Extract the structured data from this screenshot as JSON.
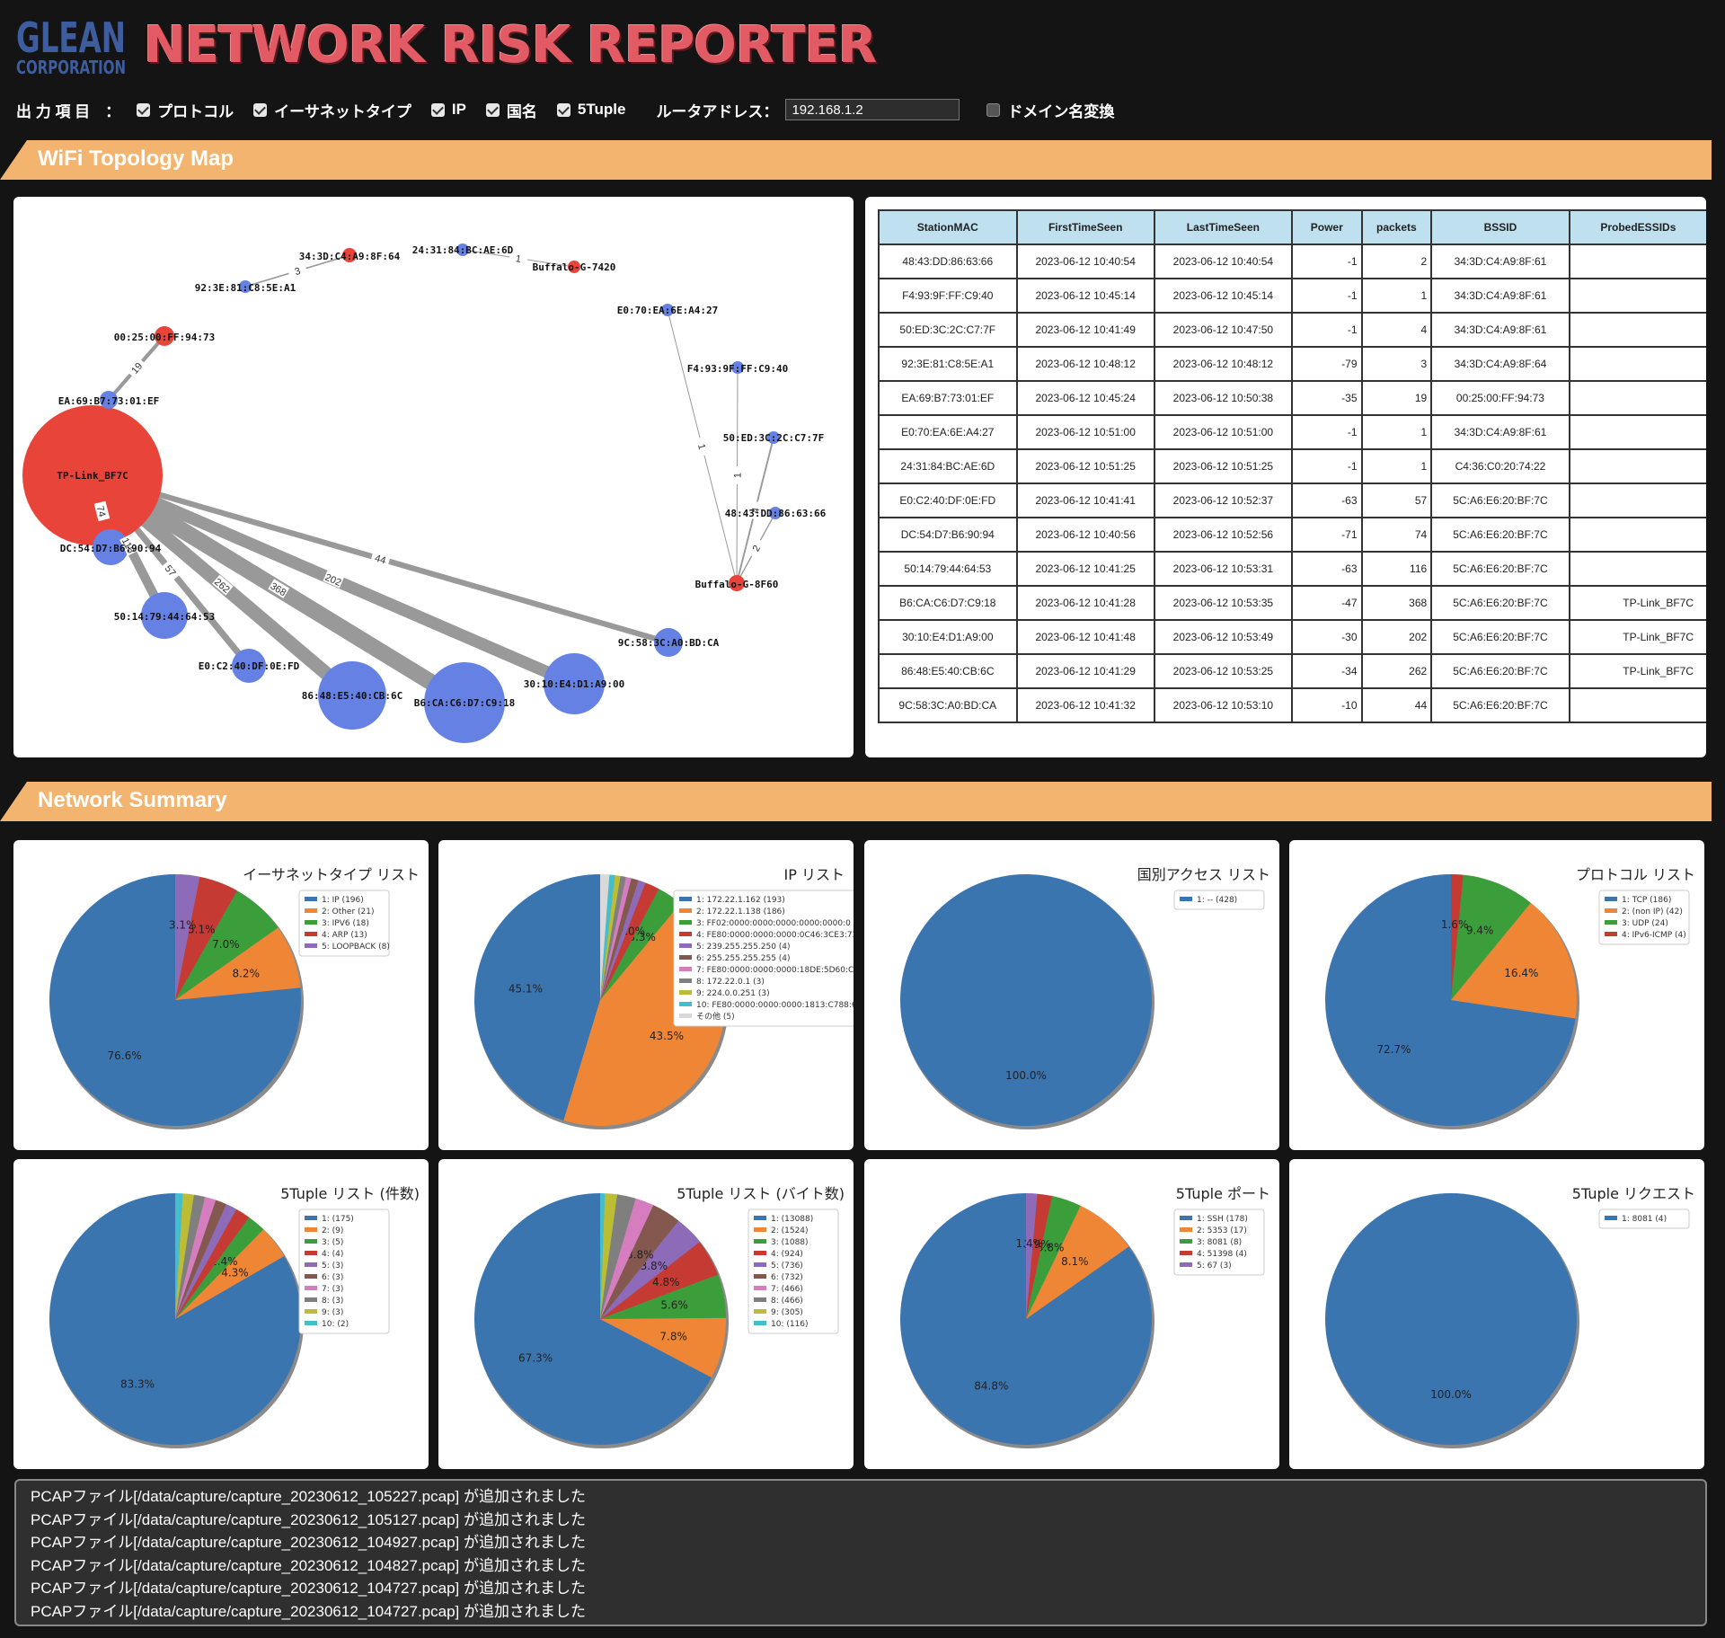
{
  "header": {
    "logo_line1": "GLEAN",
    "logo_line2": "CORPORATION",
    "title": "NETWORK RISK REPORTER"
  },
  "options": {
    "label": "出 力 項 目　：",
    "items": [
      {
        "label": "プロトコル",
        "checked": true
      },
      {
        "label": "イーサネットタイプ",
        "checked": true
      },
      {
        "label": "IP",
        "checked": true
      },
      {
        "label": "国名",
        "checked": true
      },
      {
        "label": "5Tuple",
        "checked": true
      }
    ],
    "router_label": "ルータアドレス：",
    "router_value": "192.168.1.2",
    "domain_label": "ドメイン名変換",
    "domain_checked": false
  },
  "sections": {
    "wifi": "WiFi Topology Map",
    "summary": "Network Summary"
  },
  "topology": {
    "nodes": [
      {
        "id": "TP-Link_BF7C",
        "kind": "ap"
      },
      {
        "id": "00:25:00:FF:94:73",
        "kind": "ap"
      },
      {
        "id": "34:3D:C4:A9:8F:64",
        "kind": "ap"
      },
      {
        "id": "Buffalo-G-7420",
        "kind": "ap"
      },
      {
        "id": "Buffalo-G-8F60",
        "kind": "ap"
      },
      {
        "id": "EA:69:B7:73:01:EF",
        "kind": "station"
      },
      {
        "id": "92:3E:81:C8:5E:A1",
        "kind": "station"
      },
      {
        "id": "24:31:84:BC:AE:6D",
        "kind": "station"
      },
      {
        "id": "E0:70:EA:6E:A4:27",
        "kind": "station"
      },
      {
        "id": "F4:93:9F:FF:C9:40",
        "kind": "station"
      },
      {
        "id": "50:ED:3C:2C:C7:7F",
        "kind": "station"
      },
      {
        "id": "48:43:DD:86:63:66",
        "kind": "station"
      },
      {
        "id": "DC:54:D7:B6:90:94",
        "kind": "station"
      },
      {
        "id": "50:14:79:44:64:53",
        "kind": "station"
      },
      {
        "id": "E0:C2:40:DF:0E:FD",
        "kind": "station"
      },
      {
        "id": "86:48:E5:40:CB:6C",
        "kind": "station"
      },
      {
        "id": "B6:CA:C6:D7:C9:18",
        "kind": "station"
      },
      {
        "id": "30:10:E4:D1:A9:00",
        "kind": "station"
      },
      {
        "id": "9C:58:3C:A0:BD:CA",
        "kind": "station"
      }
    ],
    "edges": [
      {
        "from": "EA:69:B7:73:01:EF",
        "to": "00:25:00:FF:94:73",
        "label": "19"
      },
      {
        "from": "92:3E:81:C8:5E:A1",
        "to": "34:3D:C4:A9:8F:64",
        "label": "3"
      },
      {
        "from": "24:31:84:BC:AE:6D",
        "to": "Buffalo-G-7420",
        "label": "1"
      },
      {
        "from": "E0:70:EA:6E:A4:27",
        "to": "Buffalo-G-8F60",
        "label": "1"
      },
      {
        "from": "F4:93:9F:FF:C9:40",
        "to": "Buffalo-G-8F60",
        "label": "1"
      },
      {
        "from": "50:ED:3C:2C:C7:7F",
        "to": "Buffalo-G-8F60",
        "label": "4"
      },
      {
        "from": "48:43:DD:86:63:66",
        "to": "Buffalo-G-8F60",
        "label": "2"
      },
      {
        "from": "DC:54:D7:B6:90:94",
        "to": "TP-Link_BF7C",
        "label": "74"
      },
      {
        "from": "50:14:79:44:64:53",
        "to": "TP-Link_BF7C",
        "label": "116"
      },
      {
        "from": "E0:C2:40:DF:0E:FD",
        "to": "TP-Link_BF7C",
        "label": "57"
      },
      {
        "from": "86:48:E5:40:CB:6C",
        "to": "TP-Link_BF7C",
        "label": "262"
      },
      {
        "from": "B6:CA:C6:D7:C9:18",
        "to": "TP-Link_BF7C",
        "label": "368"
      },
      {
        "from": "30:10:E4:D1:A9:00",
        "to": "TP-Link_BF7C",
        "label": "202"
      },
      {
        "from": "9C:58:3C:A0:BD:CA",
        "to": "TP-Link_BF7C",
        "label": "44"
      }
    ]
  },
  "wifi_table": {
    "headers": [
      "StationMAC",
      "FirstTimeSeen",
      "LastTimeSeen",
      "Power",
      "packets",
      "BSSID",
      "ProbedESSIDs"
    ],
    "rows": [
      [
        "48:43:DD:86:63:66",
        "2023-06-12 10:40:54",
        "2023-06-12 10:40:54",
        "-1",
        "2",
        "34:3D:C4:A9:8F:61",
        ""
      ],
      [
        "F4:93:9F:FF:C9:40",
        "2023-06-12 10:45:14",
        "2023-06-12 10:45:14",
        "-1",
        "1",
        "34:3D:C4:A9:8F:61",
        ""
      ],
      [
        "50:ED:3C:2C:C7:7F",
        "2023-06-12 10:41:49",
        "2023-06-12 10:47:50",
        "-1",
        "4",
        "34:3D:C4:A9:8F:61",
        ""
      ],
      [
        "92:3E:81:C8:5E:A1",
        "2023-06-12 10:48:12",
        "2023-06-12 10:48:12",
        "-79",
        "3",
        "34:3D:C4:A9:8F:64",
        ""
      ],
      [
        "EA:69:B7:73:01:EF",
        "2023-06-12 10:45:24",
        "2023-06-12 10:50:38",
        "-35",
        "19",
        "00:25:00:FF:94:73",
        ""
      ],
      [
        "E0:70:EA:6E:A4:27",
        "2023-06-12 10:51:00",
        "2023-06-12 10:51:00",
        "-1",
        "1",
        "34:3D:C4:A9:8F:61",
        ""
      ],
      [
        "24:31:84:BC:AE:6D",
        "2023-06-12 10:51:25",
        "2023-06-12 10:51:25",
        "-1",
        "1",
        "C4:36:C0:20:74:22",
        ""
      ],
      [
        "E0:C2:40:DF:0E:FD",
        "2023-06-12 10:41:41",
        "2023-06-12 10:52:37",
        "-63",
        "57",
        "5C:A6:E6:20:BF:7C",
        ""
      ],
      [
        "DC:54:D7:B6:90:94",
        "2023-06-12 10:40:56",
        "2023-06-12 10:52:56",
        "-71",
        "74",
        "5C:A6:E6:20:BF:7C",
        ""
      ],
      [
        "50:14:79:44:64:53",
        "2023-06-12 10:41:25",
        "2023-06-12 10:53:31",
        "-63",
        "116",
        "5C:A6:E6:20:BF:7C",
        ""
      ],
      [
        "B6:CA:C6:D7:C9:18",
        "2023-06-12 10:41:28",
        "2023-06-12 10:53:35",
        "-47",
        "368",
        "5C:A6:E6:20:BF:7C",
        "TP-Link_BF7C"
      ],
      [
        "30:10:E4:D1:A9:00",
        "2023-06-12 10:41:48",
        "2023-06-12 10:53:49",
        "-30",
        "202",
        "5C:A6:E6:20:BF:7C",
        "TP-Link_BF7C"
      ],
      [
        "86:48:E5:40:CB:6C",
        "2023-06-12 10:41:29",
        "2023-06-12 10:53:25",
        "-34",
        "262",
        "5C:A6:E6:20:BF:7C",
        "TP-Link_BF7C"
      ],
      [
        "9C:58:3C:A0:BD:CA",
        "2023-06-12 10:41:32",
        "2023-06-12 10:53:10",
        "-10",
        "44",
        "5C:A6:E6:20:BF:7C",
        ""
      ]
    ]
  },
  "colors": [
    "#3a75b0",
    "#ef8636",
    "#3b9e3a",
    "#c53a32",
    "#8d6bb8",
    "#84584e",
    "#d57dbf",
    "#7f7f7f",
    "#bcbc35",
    "#42becd",
    "#d9d9d9"
  ],
  "chart_data": [
    {
      "type": "pie",
      "title": "イーサネットタイプ リスト",
      "legend": [
        "1: IP (196)",
        "2: Other (21)",
        "3: IPV6 (18)",
        "4: ARP (13)",
        "5: LOOPBACK (8)"
      ],
      "values": [
        196,
        21,
        18,
        13,
        8
      ],
      "pct_labels": [
        "76.6%",
        "8.2%",
        "7.0%",
        "5.1%",
        "3.1%"
      ]
    },
    {
      "type": "pie",
      "title": "IP リスト",
      "legend": [
        "1: 172.22.1.162 (193)",
        "2: 172.22.1.138 (186)",
        "3: FF02:0000:0000:0000:0000:0000:0",
        "4: FE80:0000:0000:0000:0C46:3CE3:737C:",
        "5: 239.255.255.250 (4)",
        "6: 255.255.255.255 (4)",
        "7: FE80:0000:0000:0000:18DE:5D60:CC89:",
        "8: 172.22.0.1 (3)",
        "9: 224.0.0.251 (3)",
        "10: FE80:0000:0000:0000:1813:C788:6E61",
        "その他 (5)"
      ],
      "values": [
        193,
        186,
        14,
        8,
        4,
        4,
        3,
        3,
        3,
        3,
        5
      ],
      "pct_labels": [
        "45.1%",
        "43.5%",
        "3.3%",
        "2.0%",
        "",
        "",
        "",
        "",
        "",
        "",
        ""
      ]
    },
    {
      "type": "pie",
      "title": "国別アクセス リスト",
      "legend": [
        "1: -- (428)"
      ],
      "values": [
        428
      ],
      "pct_labels": [
        "100.0%"
      ]
    },
    {
      "type": "pie",
      "title": "プロトコル リスト",
      "legend": [
        "1: TCP (186)",
        "2: (non IP) (42)",
        "3: UDP (24)",
        "4: IPv6-ICMP (4)"
      ],
      "values": [
        186,
        42,
        24,
        4
      ],
      "pct_labels": [
        "72.7%",
        "16.4%",
        "9.4%",
        "1.6%"
      ]
    },
    {
      "type": "pie",
      "title": "5Tuple リスト (件数)",
      "legend": [
        "1: (175)",
        "2: (9)",
        "3: (5)",
        "4: (4)",
        "5: (3)",
        "6: (3)",
        "7: (3)",
        "8: (3)",
        "9: (3)",
        "10: (2)"
      ],
      "values": [
        175,
        9,
        5,
        4,
        3,
        3,
        3,
        3,
        3,
        2
      ],
      "pct_labels": [
        "83.3%",
        "4.3%",
        "2.4%",
        "",
        "",
        "",
        "",
        "",
        "",
        ""
      ]
    },
    {
      "type": "pie",
      "title": "5Tuple リスト (バイト数)",
      "legend": [
        "1: (13088)",
        "2: (1524)",
        "3: (1088)",
        "4: (924)",
        "5: (736)",
        "6: (732)",
        "7: (466)",
        "8: (466)",
        "9: (305)",
        "10: (116)"
      ],
      "values": [
        13088,
        1524,
        1088,
        924,
        736,
        732,
        466,
        466,
        305,
        116
      ],
      "pct_labels": [
        "67.3%",
        "7.8%",
        "5.6%",
        "4.8%",
        "3.8%",
        "3.8%",
        "",
        "",
        "",
        ""
      ]
    },
    {
      "type": "pie",
      "title": "5Tuple ポート",
      "legend": [
        "1: SSH (178)",
        "2: 5353 (17)",
        "3: 8081 (8)",
        "4: 51398 (4)",
        "5: 67 (3)"
      ],
      "values": [
        178,
        17,
        8,
        4,
        3
      ],
      "pct_labels": [
        "84.8%",
        "8.1%",
        "3.8%",
        "1.9%",
        "1.4%"
      ]
    },
    {
      "type": "pie",
      "title": "5Tuple リクエスト",
      "legend": [
        "1: 8081 (4)"
      ],
      "values": [
        4
      ],
      "pct_labels": [
        "100.0%"
      ]
    }
  ],
  "log": {
    "lines": [
      "PCAPファイル[/data/capture/capture_20230612_105227.pcap] が追加されました",
      "PCAPファイル[/data/capture/capture_20230612_105127.pcap] が追加されました",
      "PCAPファイル[/data/capture/capture_20230612_104927.pcap] が追加されました",
      "PCAPファイル[/data/capture/capture_20230612_104827.pcap] が追加されました",
      "PCAPファイル[/data/capture/capture_20230612_104727.pcap] が追加されました",
      "PCAPファイル[/data/capture/capture_20230612_104727.pcap] が追加されました"
    ]
  }
}
